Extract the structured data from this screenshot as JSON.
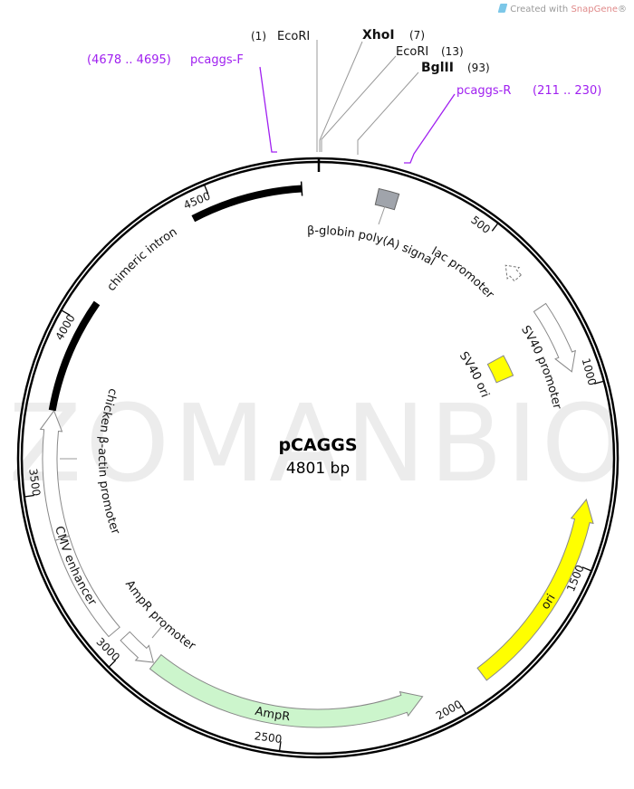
{
  "credit": {
    "prefix": "Created with",
    "brand": "SnapGene",
    "mark": "®"
  },
  "watermark": "ZOMANBIO",
  "plasmid": {
    "name": "pCAGGS",
    "length": "4801 bp"
  },
  "sites": [
    {
      "name": "EcoRI",
      "pos": "(1)"
    },
    {
      "name": "XhoI",
      "pos": "(7)"
    },
    {
      "name": "EcoRI",
      "pos": "(13)"
    },
    {
      "name": "BglII",
      "pos": "(93)"
    }
  ],
  "primers": [
    {
      "name": "pcaggs-F",
      "range": "(4678 .. 4695)"
    },
    {
      "name": "pcaggs-R",
      "range": "(211 .. 230)"
    }
  ],
  "features": {
    "bglobin": "β-globin poly(A) signal",
    "lac": "lac promoter",
    "sv40p": "SV40 promoter",
    "sv40ori": "SV40 ori",
    "ori": "ori",
    "ampr": "AmpR",
    "amprp": "AmpR promoter",
    "cmv": "CMV enhancer",
    "cba": "chicken β-actin promoter",
    "intron": "chimeric intron"
  },
  "colors": {
    "primer": "#a020f0",
    "ori": "#ffff00",
    "ampr": "#ccf5cc",
    "polyA": "#a0a4ab",
    "ring": "#000000"
  },
  "ticks": [
    "500",
    "1000",
    "1500",
    "2000",
    "2500",
    "3000",
    "3500",
    "4000",
    "4500"
  ]
}
